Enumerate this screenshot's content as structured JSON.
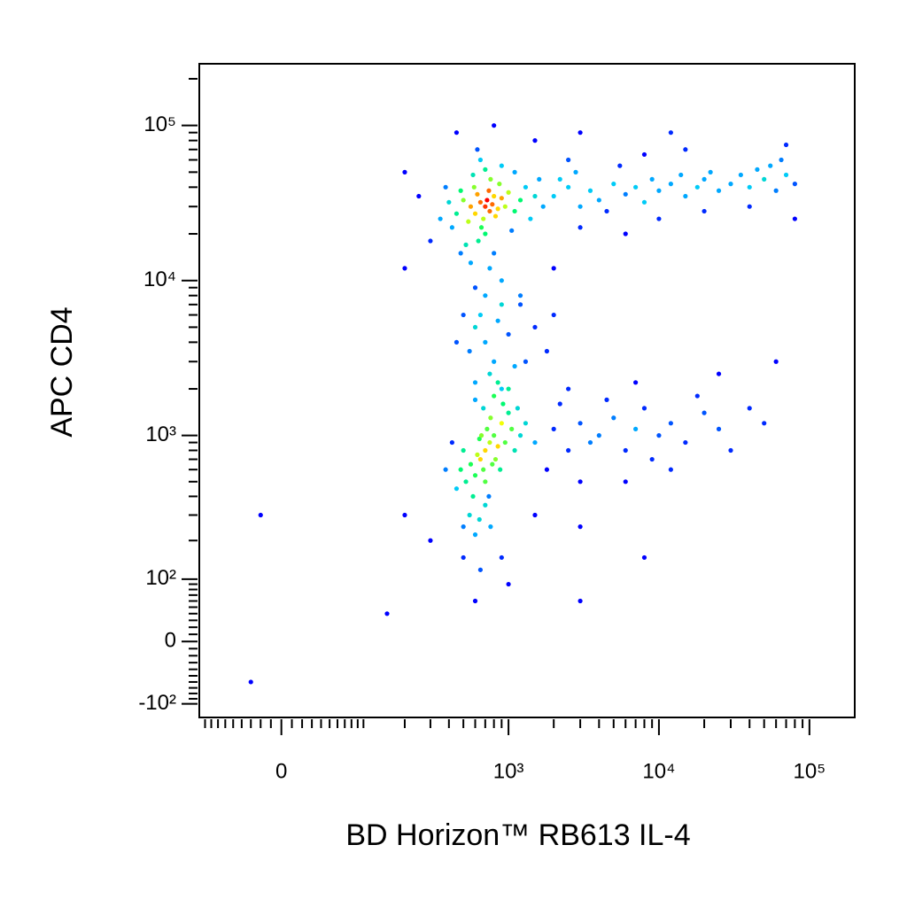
{
  "chart_data": {
    "type": "scatter",
    "x_label": "BD Horizon™ RB613 IL-4",
    "y_label": "APC CD4",
    "xscale": "logicle",
    "yscale": "logicle",
    "xlim": [
      -100,
      200000
    ],
    "ylim": [
      -130,
      250000
    ],
    "xticks": [
      0,
      {
        "value": 1000,
        "label": "10³"
      },
      {
        "value": 10000,
        "label": "10⁴"
      },
      {
        "value": 100000,
        "label": "10⁵"
      }
    ],
    "yticks": [
      {
        "value": -100,
        "label": "-10²"
      },
      0,
      {
        "value": 100,
        "label": "10²"
      },
      {
        "value": 1000,
        "label": "10³"
      },
      {
        "value": 10000,
        "label": "10⁴"
      },
      {
        "value": 100000,
        "label": "10⁵"
      }
    ],
    "xminorticks": [
      -90,
      -80,
      -70,
      -60,
      -50,
      -40,
      -30,
      -20,
      -10,
      10,
      20,
      30,
      40,
      50,
      60,
      70,
      80,
      90,
      100,
      200,
      300,
      400,
      500,
      600,
      700,
      800,
      900,
      2000,
      3000,
      4000,
      5000,
      6000,
      7000,
      8000,
      9000,
      20000,
      30000,
      40000,
      50000,
      60000,
      70000,
      80000,
      90000
    ],
    "yminorticks": [
      -90,
      -80,
      -70,
      -60,
      -50,
      -40,
      -30,
      -20,
      -10,
      10,
      20,
      30,
      40,
      50,
      60,
      70,
      80,
      90,
      200,
      300,
      400,
      500,
      600,
      700,
      800,
      900,
      2000,
      3000,
      4000,
      5000,
      6000,
      7000,
      8000,
      9000,
      20000,
      30000,
      40000,
      50000,
      60000,
      70000,
      80000,
      90000,
      200000
    ],
    "density_colors": [
      "#0000ff",
      "#00c8ff",
      "#00ff60",
      "#ffff00",
      "#ff0000"
    ],
    "x": [
      700,
      650,
      750,
      800,
      600,
      720,
      680,
      780,
      850,
      620,
      560,
      900,
      740,
      660,
      820,
      590,
      700,
      950,
      500,
      1000,
      760,
      630,
      870,
      540,
      1100,
      480,
      1200,
      450,
      1300,
      420,
      700,
      800,
      580,
      1050,
      520,
      1400,
      400,
      650,
      900,
      1500,
      560,
      480,
      1600,
      380,
      750,
      1100,
      350,
      1700,
      620,
      900,
      2000,
      2500,
      3000,
      2200,
      3500,
      4000,
      5000,
      4500,
      6000,
      7000,
      8000,
      9000,
      10000,
      12000,
      15000,
      14000,
      18000,
      20000,
      25000,
      22000,
      30000,
      35000,
      40000,
      45000,
      50000,
      60000,
      55000,
      70000,
      80000,
      3000,
      6000,
      10000,
      20000,
      2500,
      8000,
      15000,
      40000,
      2800,
      5500,
      65000,
      300,
      250,
      200,
      450,
      800,
      1500,
      3000,
      12000,
      70000,
      80000,
      200,
      1200,
      2000,
      600,
      600,
      700,
      800,
      650,
      900,
      750,
      1000,
      550,
      1100,
      700,
      1300,
      1500,
      500,
      900,
      2000,
      450,
      1200,
      1800,
      850,
      600,
      700,
      650,
      750,
      680,
      800,
      620,
      720,
      780,
      600,
      850,
      700,
      640,
      900,
      560,
      760,
      520,
      820,
      680,
      950,
      580,
      660,
      1000,
      500,
      880,
      740,
      600,
      1050,
      480,
      700,
      800,
      550,
      1100,
      450,
      920,
      640,
      1200,
      420,
      1000,
      500,
      760,
      380,
      1150,
      600,
      850,
      1300,
      1500,
      2000,
      2500,
      3000,
      3500,
      4000,
      5000,
      6000,
      7000,
      8000,
      10000,
      12000,
      15000,
      20000,
      25000,
      30000,
      2200,
      4500,
      9000,
      18000,
      40000,
      1800,
      3000,
      6000,
      12000,
      50000,
      2500,
      7000,
      25000,
      60000,
      500,
      650,
      300,
      200,
      900,
      1500,
      3000,
      8000,
      3000,
      -20,
      -30,
      150,
      600,
      1000
    ],
    "y": [
      30000,
      32000,
      28000,
      35000,
      27000,
      33000,
      25000,
      31000,
      29000,
      36000,
      30000,
      34000,
      38000,
      22000,
      26000,
      40000,
      20000,
      30000,
      33000,
      37000,
      45000,
      18000,
      42000,
      24000,
      28000,
      38000,
      33000,
      27000,
      40000,
      22000,
      52000,
      15000,
      48000,
      21000,
      17000,
      25000,
      32000,
      60000,
      55000,
      35000,
      13000,
      15000,
      45000,
      40000,
      12000,
      50000,
      25000,
      30000,
      70000,
      10000,
      35000,
      40000,
      30000,
      45000,
      38000,
      33000,
      42000,
      28000,
      36000,
      40000,
      32000,
      45000,
      38000,
      42000,
      35000,
      48000,
      40000,
      45000,
      38000,
      50000,
      42000,
      48000,
      40000,
      52000,
      45000,
      38000,
      55000,
      48000,
      42000,
      22000,
      20000,
      25000,
      28000,
      60000,
      65000,
      70000,
      30000,
      50000,
      55000,
      60000,
      18000,
      35000,
      12000,
      90000,
      100000,
      80000,
      90000,
      90000,
      75000,
      25000,
      50000,
      8000,
      12000,
      9000,
      5000,
      4000,
      3000,
      6000,
      7000,
      2500,
      4500,
      3500,
      2800,
      8000,
      3000,
      5000,
      6000,
      2000,
      6000,
      4000,
      7000,
      3500,
      5500,
      2200,
      800,
      700,
      900,
      600,
      1000,
      750,
      1100,
      650,
      550,
      850,
      500,
      950,
      1200,
      650,
      1300,
      500,
      700,
      1500,
      900,
      400,
      1000,
      1400,
      800,
      600,
      400,
      1700,
      1100,
      600,
      350,
      1800,
      300,
      800,
      450,
      1600,
      280,
      1000,
      900,
      2000,
      250,
      250,
      600,
      1500,
      220,
      2200,
      1200,
      900,
      1100,
      800,
      1200,
      900,
      1000,
      1300,
      800,
      1100,
      1500,
      1000,
      1200,
      900,
      1400,
      1100,
      800,
      1600,
      1700,
      700,
      1800,
      1500,
      600,
      500,
      500,
      600,
      1200,
      2000,
      2200,
      2500,
      3000,
      150,
      120,
      200,
      300,
      150,
      300,
      250,
      150,
      60,
      300,
      -60,
      40,
      60,
      90
    ]
  }
}
